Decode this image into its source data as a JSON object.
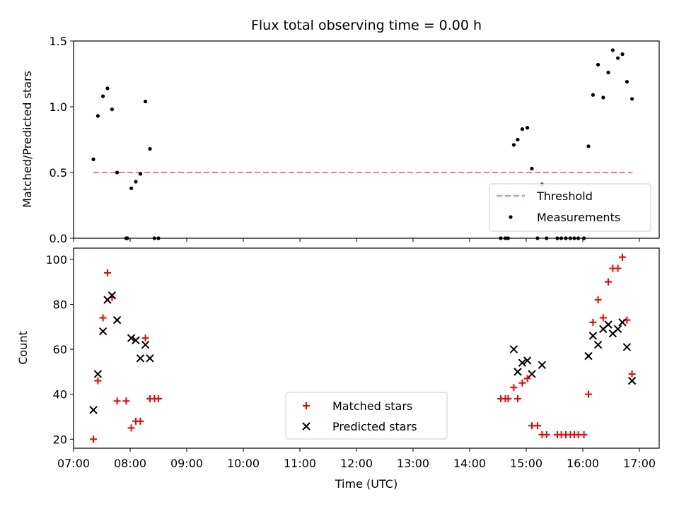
{
  "title": "Flux total observing time = 0.00 h",
  "chart_data": [
    {
      "type": "scatter",
      "ylabel": "Matched/Predicted stars",
      "xlim": [
        7.0,
        17.35
      ],
      "ylim": [
        0,
        1.5
      ],
      "yticks": [
        0.0,
        0.5,
        1.0,
        1.5
      ],
      "ytick_labels": [
        "0.0",
        "0.5",
        "1.0",
        "1.5"
      ],
      "legend_position": "lower-right",
      "threshold": {
        "name": "Threshold",
        "value": 0.5,
        "x_range": [
          7.35,
          16.88
        ],
        "color": "#ff7f7f"
      },
      "series": [
        {
          "name": "Measurements",
          "color": "#000000",
          "marker": "dot",
          "x": [
            7.35,
            7.43,
            7.52,
            7.6,
            7.68,
            7.77,
            7.93,
            7.95,
            8.02,
            8.1,
            8.18,
            8.27,
            8.35,
            8.43,
            8.5,
            14.55,
            14.63,
            14.68,
            14.78,
            14.85,
            14.93,
            15.02,
            15.1,
            15.2,
            15.28,
            15.36,
            15.55,
            15.62,
            15.7,
            15.78,
            15.85,
            15.92,
            16.02,
            16.1,
            16.18,
            16.27,
            16.36,
            16.45,
            16.53,
            16.62,
            16.7,
            16.78,
            16.87
          ],
          "y": [
            0.6,
            0.93,
            1.08,
            1.14,
            0.98,
            0.5,
            0.0,
            0.0,
            0.38,
            0.43,
            0.49,
            1.04,
            0.68,
            0.0,
            0.0,
            0.0,
            0.0,
            0.0,
            0.71,
            0.75,
            0.83,
            0.84,
            0.53,
            0.0,
            0.41,
            0.0,
            0.0,
            0.0,
            0.0,
            0.0,
            0.0,
            0.0,
            0.0,
            0.7,
            1.09,
            1.32,
            1.07,
            1.26,
            1.43,
            1.37,
            1.4,
            1.19,
            1.06
          ]
        }
      ]
    },
    {
      "type": "scatter",
      "xlabel": "Time (UTC)",
      "ylabel": "Count",
      "xlim": [
        7.0,
        17.35
      ],
      "ylim": [
        16,
        105
      ],
      "yticks": [
        20,
        40,
        60,
        80,
        100
      ],
      "ytick_labels": [
        "20",
        "40",
        "60",
        "80",
        "100"
      ],
      "xticks": [
        7,
        8,
        9,
        10,
        11,
        12,
        13,
        14,
        15,
        16,
        17
      ],
      "xtick_labels": [
        "07:00",
        "08:00",
        "09:00",
        "10:00",
        "11:00",
        "12:00",
        "13:00",
        "14:00",
        "15:00",
        "16:00",
        "17:00"
      ],
      "legend_position": "lower-center",
      "series": [
        {
          "name": "Matched stars",
          "color": "#ff0000",
          "marker": "plus",
          "x": [
            7.35,
            7.43,
            7.52,
            7.6,
            7.68,
            7.77,
            7.93,
            8.02,
            8.1,
            8.18,
            8.27,
            8.35,
            8.43,
            8.5,
            14.55,
            14.63,
            14.68,
            14.78,
            14.85,
            14.93,
            15.02,
            15.1,
            15.2,
            15.28,
            15.36,
            15.55,
            15.62,
            15.7,
            15.78,
            15.85,
            15.92,
            16.02,
            16.1,
            16.18,
            16.27,
            16.36,
            16.45,
            16.53,
            16.62,
            16.7,
            16.78,
            16.87
          ],
          "y": [
            20,
            46,
            74,
            94,
            83,
            37,
            37,
            25,
            28,
            28,
            65,
            38,
            38,
            38,
            38,
            38,
            38,
            43,
            38,
            45,
            47,
            26,
            26,
            22,
            22,
            22,
            22,
            22,
            22,
            22,
            22,
            22,
            40,
            72,
            82,
            74,
            90,
            96,
            96,
            101,
            73,
            49
          ]
        },
        {
          "name": "Predicted stars",
          "color": "#000000",
          "marker": "x",
          "x": [
            7.35,
            7.43,
            7.52,
            7.6,
            7.68,
            7.77,
            8.02,
            8.1,
            8.18,
            8.27,
            8.35,
            14.78,
            14.85,
            14.93,
            15.02,
            15.1,
            15.28,
            16.1,
            16.18,
            16.27,
            16.36,
            16.45,
            16.53,
            16.62,
            16.7,
            16.78,
            16.87
          ],
          "y": [
            33,
            49,
            68,
            82,
            84,
            73,
            65,
            64,
            56,
            62,
            56,
            60,
            50,
            54,
            55,
            49,
            53,
            57,
            66,
            62,
            69,
            71,
            67,
            69,
            72,
            61,
            46
          ]
        }
      ]
    }
  ]
}
